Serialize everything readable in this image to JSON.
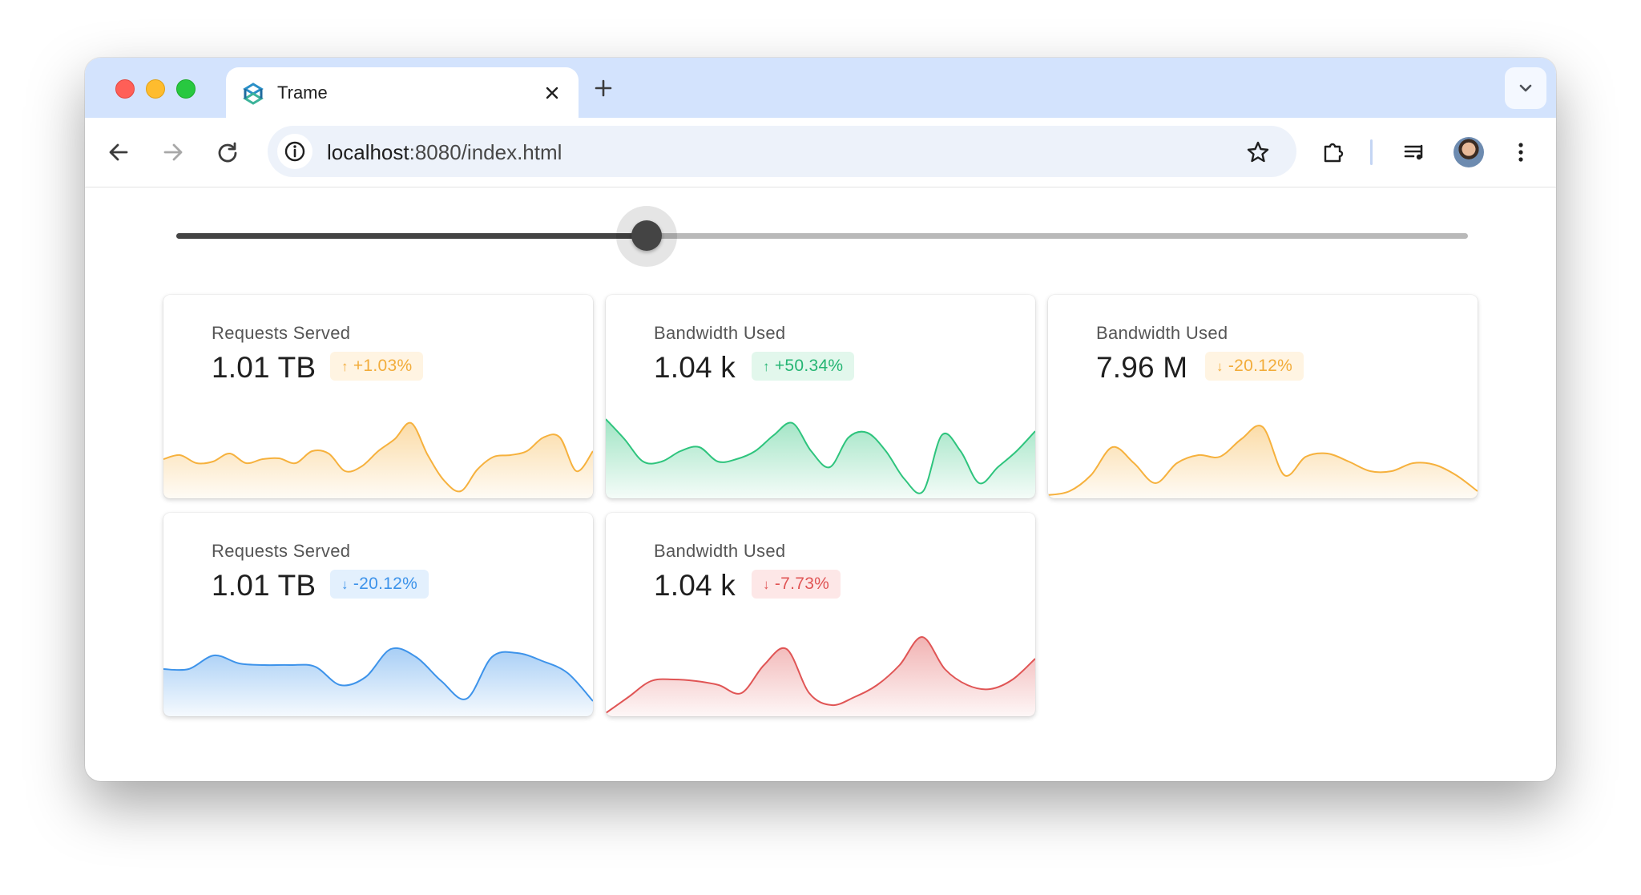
{
  "browser": {
    "tab": {
      "title": "Trame"
    },
    "omnibox": {
      "host": "localhost",
      "path": ":8080/index.html"
    }
  },
  "slider": {
    "value_fraction": 0.364
  },
  "cards": [
    {
      "label": "Requests Served",
      "value": "1.01 TB",
      "badge": "+1.03%",
      "trend": "up",
      "color": "#f6b13d",
      "badge_bg": "#fff4e2",
      "badge_fg": "#f2ac3a",
      "spark": [
        0.45,
        0.5,
        0.4,
        0.42,
        0.52,
        0.4,
        0.45,
        0.46,
        0.4,
        0.55,
        0.52,
        0.3,
        0.36,
        0.55,
        0.7,
        0.9,
        0.5,
        0.18,
        0.05,
        0.32,
        0.48,
        0.5,
        0.55,
        0.72,
        0.72,
        0.3,
        0.55
      ]
    },
    {
      "label": "Bandwidth Used",
      "value": "1.04 k",
      "badge": "+50.34%",
      "trend": "up",
      "color": "#2ec47d",
      "badge_bg": "#e2f7ec",
      "badge_fg": "#25b573",
      "spark": [
        0.95,
        0.7,
        0.42,
        0.42,
        0.55,
        0.6,
        0.42,
        0.45,
        0.55,
        0.75,
        0.9,
        0.55,
        0.35,
        0.72,
        0.78,
        0.55,
        0.2,
        0.05,
        0.75,
        0.55,
        0.15,
        0.35,
        0.55,
        0.8
      ]
    },
    {
      "label": "Bandwidth Used",
      "value": "7.96 M",
      "badge": "-20.12%",
      "trend": "down",
      "color": "#f6b13d",
      "badge_bg": "#fff4e2",
      "badge_fg": "#f2ac3a",
      "spark": [
        0.0,
        0.05,
        0.25,
        0.6,
        0.4,
        0.15,
        0.4,
        0.5,
        0.48,
        0.7,
        0.85,
        0.25,
        0.48,
        0.52,
        0.42,
        0.3,
        0.3,
        0.4,
        0.38,
        0.25,
        0.05
      ]
    },
    {
      "label": "Requests Served",
      "value": "1.01 TB",
      "badge": "-20.12%",
      "trend": "down",
      "color": "#3d93ea",
      "badge_bg": "#e3f0fd",
      "badge_fg": "#3d93ea",
      "spark": [
        0.55,
        0.55,
        0.72,
        0.62,
        0.6,
        0.6,
        0.58,
        0.35,
        0.45,
        0.8,
        0.7,
        0.4,
        0.18,
        0.7,
        0.75,
        0.65,
        0.5,
        0.15
      ]
    },
    {
      "label": "Bandwidth Used",
      "value": "1.04 k",
      "badge": "-7.73%",
      "trend": "down",
      "color": "#e05555",
      "badge_bg": "#fde7e7",
      "badge_fg": "#e05555",
      "spark": [
        0.0,
        0.2,
        0.4,
        0.42,
        0.4,
        0.35,
        0.25,
        0.6,
        0.8,
        0.25,
        0.1,
        0.2,
        0.35,
        0.6,
        0.95,
        0.55,
        0.35,
        0.3,
        0.42,
        0.68
      ]
    }
  ]
}
